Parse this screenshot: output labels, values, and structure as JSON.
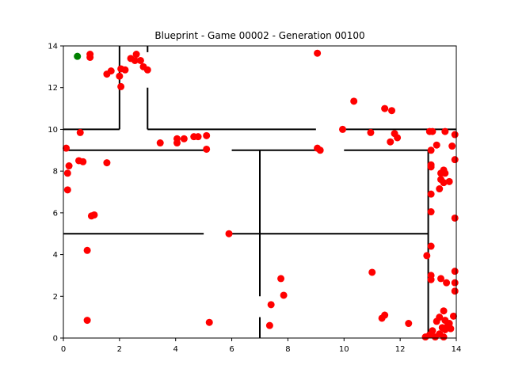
{
  "chart_data": {
    "type": "scatter",
    "title": "Blueprint - Game 00002 - Generation 00100",
    "xlabel": "",
    "ylabel": "",
    "xlim": [
      0,
      14
    ],
    "ylim": [
      0,
      14
    ],
    "xticks": [
      0,
      2,
      4,
      6,
      8,
      10,
      12,
      14
    ],
    "yticks": [
      0,
      2,
      4,
      6,
      8,
      10,
      12,
      14
    ],
    "grid": false,
    "colors": {
      "points": "#ff0000",
      "goal": "#008000",
      "walls": "#000000"
    },
    "goal": {
      "x": 0.5,
      "y": 13.5
    },
    "walls": [
      [
        [
          0,
          10
        ],
        [
          2,
          10
        ]
      ],
      [
        [
          2,
          10
        ],
        [
          2,
          14
        ]
      ],
      [
        [
          3,
          12
        ],
        [
          3,
          10
        ]
      ],
      [
        [
          3,
          10
        ],
        [
          9,
          10
        ]
      ],
      [
        [
          3,
          13.7
        ],
        [
          3,
          14
        ]
      ],
      [
        [
          10,
          10
        ],
        [
          14,
          10
        ]
      ],
      [
        [
          0,
          9
        ],
        [
          5.1,
          9
        ]
      ],
      [
        [
          6,
          9
        ],
        [
          9,
          9
        ]
      ],
      [
        [
          10,
          9
        ],
        [
          13,
          9
        ]
      ],
      [
        [
          7,
          9
        ],
        [
          7,
          2
        ]
      ],
      [
        [
          7,
          1
        ],
        [
          7,
          0
        ]
      ],
      [
        [
          0,
          5
        ],
        [
          5,
          5
        ]
      ],
      [
        [
          6,
          5
        ],
        [
          13,
          5
        ]
      ],
      [
        [
          13,
          9
        ],
        [
          13,
          0
        ]
      ]
    ],
    "points": [
      {
        "x": 0.95,
        "y": 13.6
      },
      {
        "x": 0.95,
        "y": 13.45
      },
      {
        "x": 1.55,
        "y": 12.65
      },
      {
        "x": 1.7,
        "y": 12.8
      },
      {
        "x": 2.0,
        "y": 12.55
      },
      {
        "x": 2.05,
        "y": 12.9
      },
      {
        "x": 2.2,
        "y": 12.85
      },
      {
        "x": 2.05,
        "y": 12.05
      },
      {
        "x": 2.4,
        "y": 13.4
      },
      {
        "x": 2.6,
        "y": 13.6
      },
      {
        "x": 2.55,
        "y": 13.3
      },
      {
        "x": 2.75,
        "y": 13.3
      },
      {
        "x": 2.85,
        "y": 13.0
      },
      {
        "x": 3.0,
        "y": 12.85
      },
      {
        "x": 9.05,
        "y": 13.65
      },
      {
        "x": 0.6,
        "y": 9.85
      },
      {
        "x": 0.1,
        "y": 9.1
      },
      {
        "x": 0.2,
        "y": 8.25
      },
      {
        "x": 0.15,
        "y": 7.9
      },
      {
        "x": 0.55,
        "y": 8.5
      },
      {
        "x": 0.7,
        "y": 8.45
      },
      {
        "x": 1.55,
        "y": 8.4
      },
      {
        "x": 0.15,
        "y": 7.1
      },
      {
        "x": 3.45,
        "y": 9.35
      },
      {
        "x": 4.05,
        "y": 9.55
      },
      {
        "x": 4.05,
        "y": 9.35
      },
      {
        "x": 4.3,
        "y": 9.55
      },
      {
        "x": 4.65,
        "y": 9.65
      },
      {
        "x": 4.8,
        "y": 9.65
      },
      {
        "x": 5.1,
        "y": 9.7
      },
      {
        "x": 5.1,
        "y": 9.05
      },
      {
        "x": 10.35,
        "y": 11.35
      },
      {
        "x": 11.45,
        "y": 11.0
      },
      {
        "x": 11.7,
        "y": 10.9
      },
      {
        "x": 9.95,
        "y": 10.0
      },
      {
        "x": 9.05,
        "y": 9.1
      },
      {
        "x": 9.15,
        "y": 9.0
      },
      {
        "x": 10.95,
        "y": 9.85
      },
      {
        "x": 11.65,
        "y": 9.4
      },
      {
        "x": 11.8,
        "y": 9.8
      },
      {
        "x": 11.9,
        "y": 9.6
      },
      {
        "x": 13.05,
        "y": 9.9
      },
      {
        "x": 13.15,
        "y": 9.9
      },
      {
        "x": 13.6,
        "y": 9.9
      },
      {
        "x": 13.95,
        "y": 9.75
      },
      {
        "x": 13.3,
        "y": 9.25
      },
      {
        "x": 13.85,
        "y": 9.2
      },
      {
        "x": 13.1,
        "y": 9.0
      },
      {
        "x": 13.95,
        "y": 8.55
      },
      {
        "x": 13.1,
        "y": 8.3
      },
      {
        "x": 13.1,
        "y": 8.2
      },
      {
        "x": 13.45,
        "y": 7.9
      },
      {
        "x": 13.55,
        "y": 8.05
      },
      {
        "x": 13.6,
        "y": 7.9
      },
      {
        "x": 13.45,
        "y": 7.6
      },
      {
        "x": 13.55,
        "y": 7.45
      },
      {
        "x": 13.75,
        "y": 7.5
      },
      {
        "x": 13.4,
        "y": 7.15
      },
      {
        "x": 13.1,
        "y": 6.9
      },
      {
        "x": 13.1,
        "y": 6.05
      },
      {
        "x": 13.95,
        "y": 5.75
      },
      {
        "x": 1.0,
        "y": 5.85
      },
      {
        "x": 1.1,
        "y": 5.9
      },
      {
        "x": 0.85,
        "y": 4.2
      },
      {
        "x": 5.9,
        "y": 5.0
      },
      {
        "x": 13.1,
        "y": 4.4
      },
      {
        "x": 12.95,
        "y": 3.95
      },
      {
        "x": 11.0,
        "y": 3.15
      },
      {
        "x": 13.95,
        "y": 3.2
      },
      {
        "x": 13.1,
        "y": 3.0
      },
      {
        "x": 13.1,
        "y": 2.8
      },
      {
        "x": 13.45,
        "y": 2.85
      },
      {
        "x": 13.65,
        "y": 2.65
      },
      {
        "x": 13.95,
        "y": 2.65
      },
      {
        "x": 13.95,
        "y": 2.25
      },
      {
        "x": 7.75,
        "y": 2.85
      },
      {
        "x": 7.85,
        "y": 2.05
      },
      {
        "x": 7.4,
        "y": 1.6
      },
      {
        "x": 7.35,
        "y": 0.6
      },
      {
        "x": 11.45,
        "y": 1.1
      },
      {
        "x": 11.35,
        "y": 0.95
      },
      {
        "x": 12.3,
        "y": 0.7
      },
      {
        "x": 5.2,
        "y": 0.75
      },
      {
        "x": 0.85,
        "y": 0.85
      },
      {
        "x": 13.55,
        "y": 1.3
      },
      {
        "x": 13.4,
        "y": 1.0
      },
      {
        "x": 13.3,
        "y": 0.8
      },
      {
        "x": 13.6,
        "y": 0.85
      },
      {
        "x": 13.9,
        "y": 1.05
      },
      {
        "x": 13.75,
        "y": 0.7
      },
      {
        "x": 13.5,
        "y": 0.5
      },
      {
        "x": 13.8,
        "y": 0.45
      },
      {
        "x": 13.6,
        "y": 0.4
      },
      {
        "x": 13.15,
        "y": 0.35
      },
      {
        "x": 13.4,
        "y": 0.2
      },
      {
        "x": 13.05,
        "y": 0.15
      },
      {
        "x": 12.9,
        "y": 0.05
      },
      {
        "x": 13.25,
        "y": 0.05
      },
      {
        "x": 13.55,
        "y": 0.05
      },
      {
        "x": 13.7,
        "y": 0.6
      }
    ]
  }
}
